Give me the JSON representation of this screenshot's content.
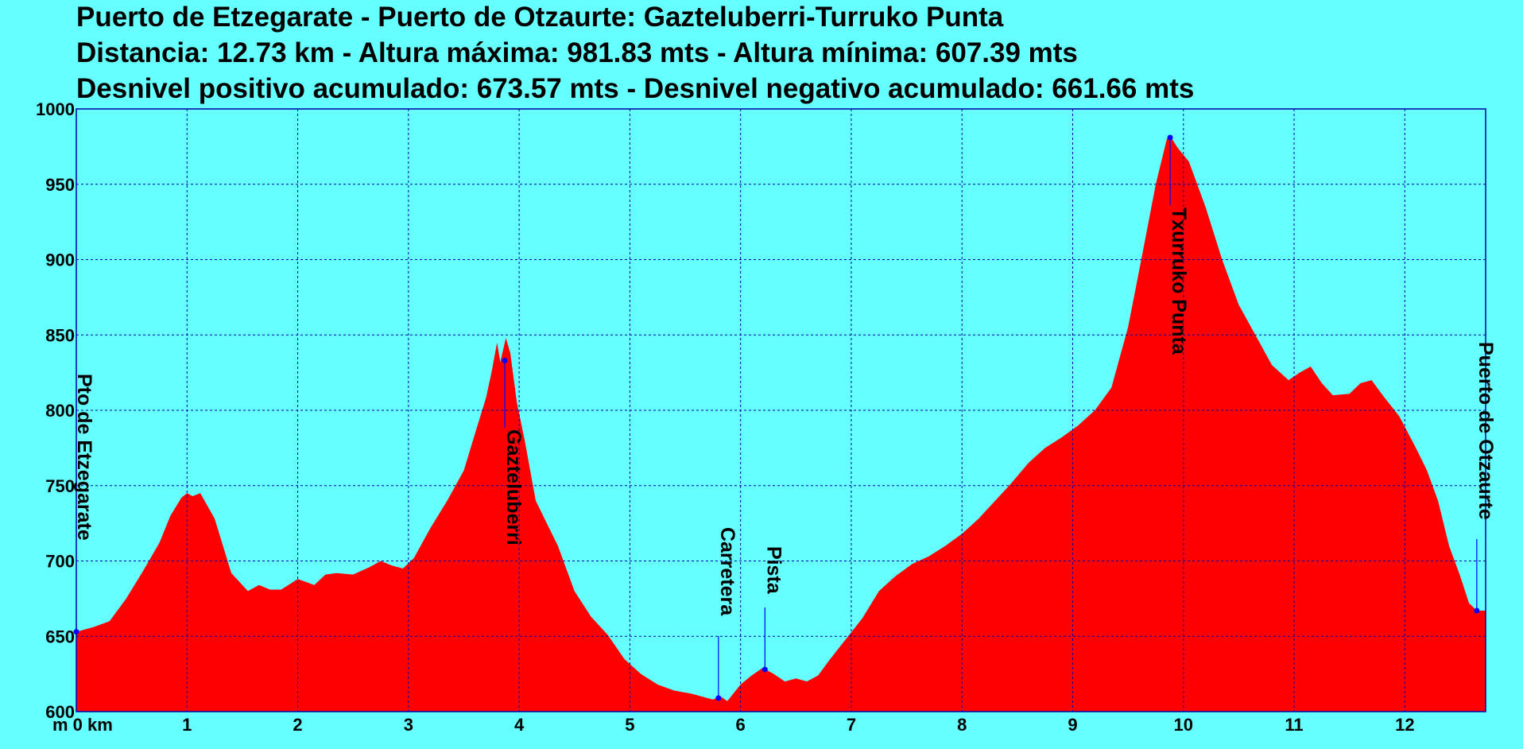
{
  "header": {
    "line1": "Puerto de Etzegarate - Puerto de Otzaurte:  Gazteluberri-Turruko Punta",
    "line2": "Distancia: 12.73 km - Altura máxima: 981.83 mts - Altura mínima: 607.39 mts",
    "line3": "Desnivel positivo acumulado: 673.57 mts - Desnivel negativo acumulado: 661.66 mts"
  },
  "chart_data": {
    "type": "area",
    "title": "Puerto de Etzegarate - Puerto de Otzaurte:  Gazteluberri-Turruko Punta",
    "xlabel": "km",
    "ylabel": "m",
    "xlim": [
      0,
      12.73
    ],
    "ylim": [
      600,
      1000
    ],
    "grid": true,
    "x_ticks": [
      0,
      1,
      2,
      3,
      4,
      5,
      6,
      7,
      8,
      9,
      10,
      11,
      12
    ],
    "x_tick_labels": [
      "m 0 km",
      "1",
      "2",
      "3",
      "4",
      "5",
      "6",
      "7",
      "8",
      "9",
      "10",
      "11",
      "12"
    ],
    "y_ticks": [
      600,
      650,
      700,
      750,
      800,
      850,
      900,
      950,
      1000
    ],
    "colors": {
      "background": "#66ffff",
      "fill": "#ff0000",
      "grid": "#0000aa",
      "marker": "#0000ff"
    },
    "series": [
      {
        "x": [
          0,
          0.15,
          0.3,
          0.45,
          0.6,
          0.75,
          0.85,
          0.95,
          1.0,
          1.05,
          1.12,
          1.25,
          1.4,
          1.55,
          1.65,
          1.75,
          1.85,
          2.0,
          2.15,
          2.25,
          2.35,
          2.5,
          2.65,
          2.75,
          2.85,
          2.95,
          3.05,
          3.2,
          3.35,
          3.5,
          3.62,
          3.7,
          3.75,
          3.8,
          3.83,
          3.88,
          3.92,
          3.98,
          4.05,
          4.15,
          4.25,
          4.35,
          4.5,
          4.65,
          4.8,
          4.95,
          5.1,
          5.25,
          5.4,
          5.55,
          5.65,
          5.75,
          5.82,
          5.88,
          6.0,
          6.1,
          6.2,
          6.3,
          6.4,
          6.5,
          6.6,
          6.7,
          6.8,
          6.95,
          7.1,
          7.25,
          7.4,
          7.55,
          7.7,
          7.85,
          8.0,
          8.15,
          8.3,
          8.45,
          8.6,
          8.75,
          8.9,
          9.05,
          9.2,
          9.35,
          9.5,
          9.62,
          9.75,
          9.85,
          9.88,
          9.95,
          10.05,
          10.2,
          10.35,
          10.5,
          10.65,
          10.8,
          10.95,
          11.05,
          11.15,
          11.25,
          11.35,
          11.5,
          11.6,
          11.7,
          11.8,
          11.95,
          12.1,
          12.2,
          12.3,
          12.4,
          12.5,
          12.58,
          12.65,
          12.73
        ],
        "y": [
          653,
          656,
          660,
          675,
          693,
          712,
          730,
          742,
          745,
          743,
          745,
          728,
          692,
          680,
          684,
          681,
          681,
          688,
          684,
          691,
          692,
          691,
          696,
          700,
          697,
          695,
          702,
          722,
          740,
          760,
          789,
          808,
          825,
          845,
          832,
          848,
          838,
          805,
          780,
          740,
          725,
          710,
          680,
          663,
          651,
          635,
          625,
          618,
          614,
          612,
          610,
          608,
          610,
          607,
          618,
          624,
          629,
          625,
          620,
          622,
          620,
          624,
          634,
          648,
          662,
          680,
          690,
          698,
          703,
          710,
          718,
          728,
          740,
          752,
          765,
          775,
          782,
          790,
          800,
          815,
          855,
          900,
          950,
          980,
          982,
          974,
          965,
          935,
          900,
          870,
          850,
          830,
          820,
          825,
          829,
          818,
          810,
          811,
          818,
          820,
          810,
          796,
          775,
          760,
          740,
          710,
          690,
          672,
          667,
          667
        ]
      }
    ],
    "annotations": [
      {
        "label": "Pto de Etzegarate",
        "x": 0.0,
        "y": 653
      },
      {
        "label": "Gazteluberri",
        "x": 3.87,
        "y": 833
      },
      {
        "label": "Carretera",
        "x": 5.8,
        "y": 609
      },
      {
        "label": "Pista",
        "x": 6.22,
        "y": 628
      },
      {
        "label": "Txurruko Punta",
        "x": 9.88,
        "y": 981
      },
      {
        "label": "Puerto de Otzaurte",
        "x": 12.65,
        "y": 667
      }
    ]
  }
}
